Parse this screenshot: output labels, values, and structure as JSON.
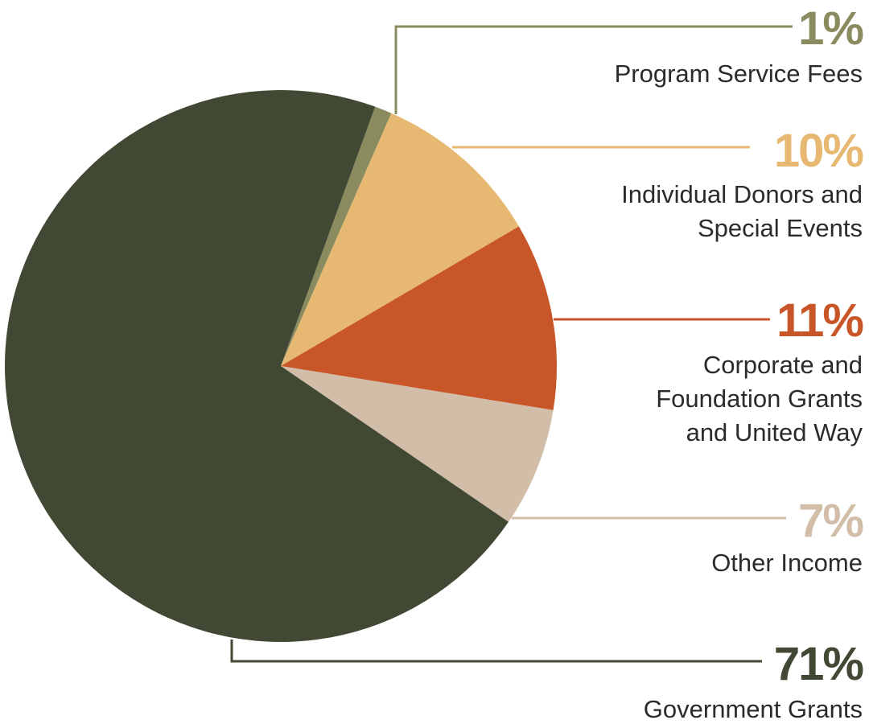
{
  "chart_data": {
    "type": "pie",
    "title": "",
    "slices": [
      {
        "label": "Program Service Fees",
        "lines": [
          "Program Service Fees"
        ],
        "value": 1,
        "display": "1%",
        "color": "#8a8c5f"
      },
      {
        "label": "Individual Donors and Special Events",
        "lines": [
          "Individual Donors and",
          "Special Events"
        ],
        "value": 10,
        "display": "10%",
        "color": "#e6b871"
      },
      {
        "label": "Corporate and Foundation Grants and United Way",
        "lines": [
          "Corporate and",
          "Foundation Grants",
          "and United Way"
        ],
        "value": 11,
        "display": "11%",
        "color": "#c95628"
      },
      {
        "label": "Other Income",
        "lines": [
          "Other Income"
        ],
        "value": 7,
        "display": "7%",
        "color": "#d1bda8"
      },
      {
        "label": "Government Grants",
        "lines": [
          "Government Grants"
        ],
        "value": 71,
        "display": "71%",
        "color": "#414833"
      }
    ]
  }
}
